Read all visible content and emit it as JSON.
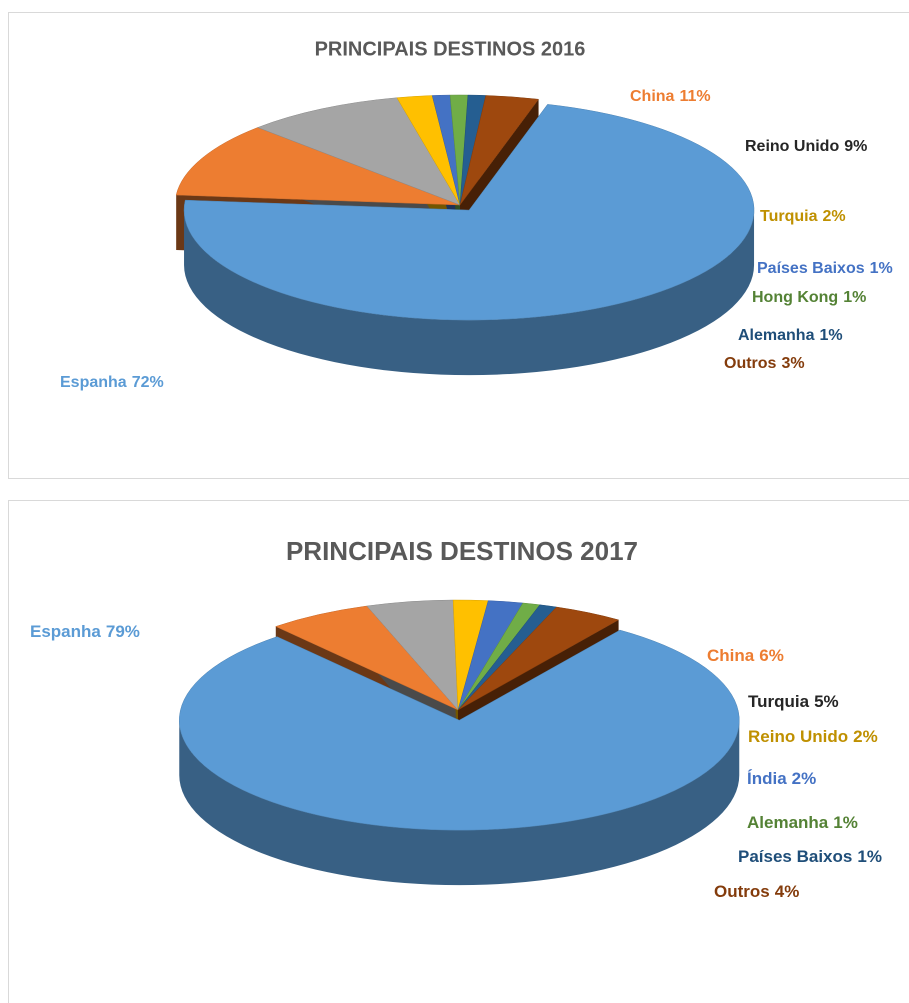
{
  "chart_data": [
    {
      "type": "pie",
      "title": "PRINCIPAIS DESTINOS 2016",
      "categories": [
        "Espanha",
        "China",
        "Reino Unido",
        "Turquia",
        "Países Baixos",
        "Hong Kong",
        "Alemanha",
        "Outros"
      ],
      "values": [
        72,
        11,
        9,
        2,
        1,
        1,
        1,
        3
      ],
      "value_labels": [
        "72%",
        "11%",
        "9%",
        "2%",
        "1%",
        "1%",
        "1%",
        "3%"
      ],
      "colors": [
        "#5b9bd5",
        "#ed7d31",
        "#a5a5a5",
        "#ffc000",
        "#4472c4",
        "#70ad47",
        "#255e91",
        "#9e480e"
      ],
      "label_colors": [
        "#5b9bd5",
        "#ed7d31",
        "#262626",
        "#bf9000",
        "#4472c4",
        "#548235",
        "#1f4e79",
        "#843c0c"
      ]
    },
    {
      "type": "pie",
      "title": "PRINCIPAIS DESTINOS 2017",
      "categories": [
        "Espanha",
        "China",
        "Turquia",
        "Reino Unido",
        "Índia",
        "Alemanha",
        "Países Baixos",
        "Outros"
      ],
      "values": [
        79,
        6,
        5,
        2,
        2,
        1,
        1,
        4
      ],
      "value_labels": [
        "79%",
        "6%",
        "5%",
        "2%",
        "2%",
        "1%",
        "1%",
        "4%"
      ],
      "colors": [
        "#5b9bd5",
        "#ed7d31",
        "#a5a5a5",
        "#ffc000",
        "#4472c4",
        "#70ad47",
        "#255e91",
        "#9e480e"
      ],
      "label_colors": [
        "#5b9bd5",
        "#ed7d31",
        "#262626",
        "#bf9000",
        "#4472c4",
        "#548235",
        "#1f4e79",
        "#843c0c"
      ]
    }
  ]
}
